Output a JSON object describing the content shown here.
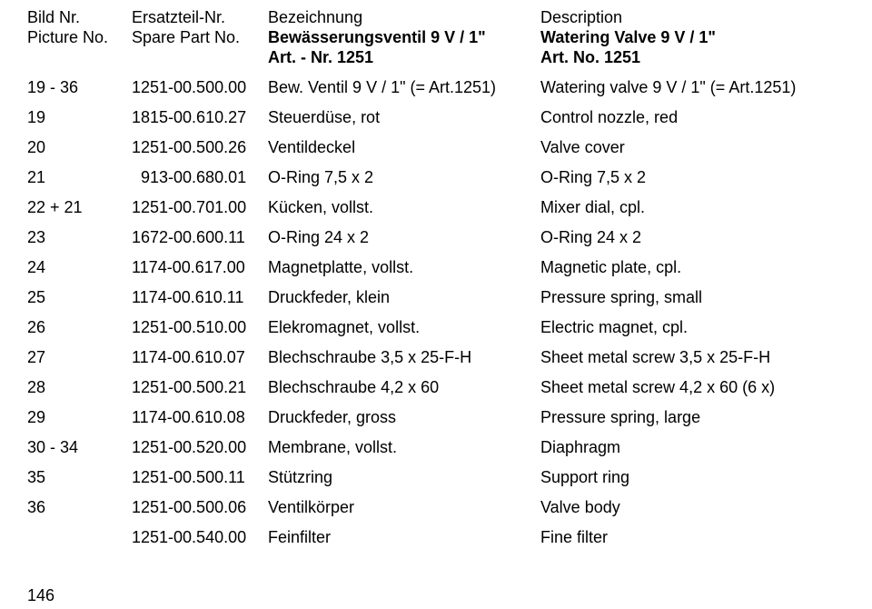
{
  "header": {
    "pic_de": "Bild Nr.",
    "pic_en": "Picture No.",
    "part_de": "Ersatzteil-Nr.",
    "part_en": "Spare Part No.",
    "bez": "Bezeichnung",
    "bez2a": "Bewässerungsventil 9 V / 1\"",
    "bez2b": "Art. - Nr. 1251",
    "desc": "Description",
    "desc2a": "Watering Valve 9 V / 1\"",
    "desc2b": "Art. No. 1251"
  },
  "rows": [
    {
      "pic": "19 - 36",
      "part": "1251-00.500.00",
      "de": "Bew. Ventil 9 V / 1\" (= Art.1251)",
      "en": "Watering valve 9 V / 1\" (= Art.1251)"
    },
    {
      "pic": "19",
      "part": "1815-00.610.27",
      "de": "Steuerdüse, rot",
      "en": "Control nozzle, red"
    },
    {
      "pic": "20",
      "part": "1251-00.500.26",
      "de": "Ventildeckel",
      "en": "Valve cover"
    },
    {
      "pic": "21",
      "part": "  913-00.680.01",
      "de": "O-Ring 7,5 x 2",
      "en": "O-Ring 7,5 x 2"
    },
    {
      "pic": "22 + 21",
      "part": "1251-00.701.00",
      "de": "Kücken, vollst.",
      "en": "Mixer dial, cpl."
    },
    {
      "pic": "23",
      "part": "1672-00.600.11",
      "de": "O-Ring 24 x 2",
      "en": "O-Ring 24 x 2"
    },
    {
      "pic": "24",
      "part": "1174-00.617.00",
      "de": "Magnetplatte, vollst.",
      "en": "Magnetic plate, cpl."
    },
    {
      "pic": "25",
      "part": "1174-00.610.11",
      "de": "Druckfeder, klein",
      "en": "Pressure spring, small"
    },
    {
      "pic": "26",
      "part": "1251-00.510.00",
      "de": "Elekromagnet, vollst.",
      "en": "Electric magnet, cpl."
    },
    {
      "pic": "27",
      "part": "1174-00.610.07",
      "de": "Blechschraube 3,5 x 25-F-H",
      "en": "Sheet metal screw 3,5 x 25-F-H"
    },
    {
      "pic": "28",
      "part": "1251-00.500.21",
      "de": "Blechschraube 4,2 x 60",
      "en": "Sheet metal screw 4,2 x 60 (6 x)"
    },
    {
      "pic": "29",
      "part": "1174-00.610.08",
      "de": "Druckfeder, gross",
      "en": "Pressure spring, large"
    },
    {
      "pic": "30 - 34",
      "part": "1251-00.520.00",
      "de": "Membrane, vollst.",
      "en": "Diaphragm"
    },
    {
      "pic": "35",
      "part": "1251-00.500.11",
      "de": "Stützring",
      "en": "Support ring"
    },
    {
      "pic": "36",
      "part": "1251-00.500.06",
      "de": "Ventilkörper",
      "en": "Valve body"
    },
    {
      "pic": "",
      "part": "1251-00.540.00",
      "de": "Feinfilter",
      "en": "Fine filter"
    }
  ],
  "page_number": "146"
}
